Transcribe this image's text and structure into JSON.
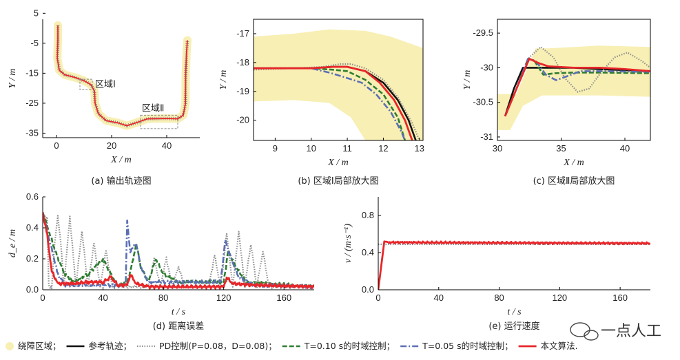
{
  "colors": {
    "zone": "#f8efb4",
    "reference": "#111111",
    "pd": "#8d8d8d",
    "t010": "#2f7d32",
    "t005": "#5b6fb3",
    "ours": "#e8262a"
  },
  "legend": [
    {
      "key": "zone",
      "label": "绕障区域；",
      "style": "dot"
    },
    {
      "key": "reference",
      "label": "参考轨迹；",
      "style": "solid"
    },
    {
      "key": "pd",
      "label": "PD控制(P=0.08，D=0.08)；",
      "style": "dotted"
    },
    {
      "key": "t010",
      "label": "T=0.10 s的时域控制；",
      "style": "dashed"
    },
    {
      "key": "t005",
      "label": "T=0.05 s的时域控制；",
      "style": "dashdot"
    },
    {
      "key": "ours",
      "label": "本文算法.",
      "style": "solid"
    }
  ],
  "watermark": "一点人工",
  "chart_data": [
    {
      "id": "a",
      "type": "line",
      "caption": "(a) 输出轨迹图",
      "xlabel": "X / m",
      "ylabel": "Y / m",
      "xlim": [
        -5,
        52
      ],
      "ylim": [
        -36.5,
        3
      ],
      "xticks": [
        0,
        20,
        40
      ],
      "yticks": [
        -35,
        -25,
        -15,
        -5,
        5
      ],
      "annotations": [
        "区域Ⅰ",
        "区域Ⅱ"
      ],
      "region_boxes": [
        {
          "name": "区域Ⅰ",
          "x": [
            8.5,
            13
          ],
          "y": [
            -20.5,
            -17
          ]
        },
        {
          "name": "区域Ⅱ",
          "x": [
            30.5,
            44
          ],
          "y": [
            -33.5,
            -29
          ]
        }
      ],
      "path": [
        [
          0.5,
          1
        ],
        [
          0.5,
          -4
        ],
        [
          0.3,
          -10
        ],
        [
          1,
          -14
        ],
        [
          3,
          -15.5
        ],
        [
          7,
          -16.5
        ],
        [
          10,
          -17.5
        ],
        [
          12.5,
          -18.8
        ],
        [
          13.8,
          -21
        ],
        [
          14,
          -25
        ],
        [
          15.2,
          -28.5
        ],
        [
          18,
          -30.8
        ],
        [
          22,
          -31.5
        ],
        [
          25.5,
          -32.5
        ],
        [
          29,
          -31.5
        ],
        [
          33,
          -30.2
        ],
        [
          40,
          -30.1
        ],
        [
          44,
          -30.2
        ],
        [
          46,
          -29
        ],
        [
          46.8,
          -25
        ],
        [
          46.9,
          -15
        ],
        [
          47.2,
          -8
        ],
        [
          47.5,
          -4
        ]
      ]
    },
    {
      "id": "b",
      "type": "line",
      "caption": "(b) 区域Ⅰ局部放大图",
      "xlabel": "X / m",
      "ylabel": "Y / m",
      "xlim": [
        8.4,
        13.1
      ],
      "ylim": [
        -20.7,
        -16.5
      ],
      "xticks": [
        9,
        10,
        11,
        12,
        13
      ],
      "yticks": [
        -20,
        -19,
        -18,
        -17
      ],
      "series": [
        {
          "key": "reference",
          "points": [
            [
              8.4,
              -18.2
            ],
            [
              10,
              -18.2
            ],
            [
              10.6,
              -18.15
            ],
            [
              11,
              -18.15
            ],
            [
              11.5,
              -18.3
            ],
            [
              12,
              -18.7
            ],
            [
              12.4,
              -19.3
            ],
            [
              12.7,
              -20
            ],
            [
              12.9,
              -20.7
            ]
          ]
        },
        {
          "key": "pd",
          "points": [
            [
              8.4,
              -18.25
            ],
            [
              9.5,
              -18.2
            ],
            [
              10.3,
              -18.15
            ],
            [
              10.8,
              -18.05
            ],
            [
              11.1,
              -18.05
            ],
            [
              11.5,
              -18.2
            ],
            [
              12,
              -18.6
            ],
            [
              12.4,
              -19.2
            ],
            [
              12.8,
              -20.1
            ],
            [
              13,
              -20.7
            ]
          ]
        },
        {
          "key": "t010",
          "points": [
            [
              8.4,
              -18.2
            ],
            [
              10,
              -18.2
            ],
            [
              10.6,
              -18.25
            ],
            [
              11,
              -18.3
            ],
            [
              11.5,
              -18.6
            ],
            [
              12,
              -19.1
            ],
            [
              12.4,
              -19.9
            ],
            [
              12.6,
              -20.7
            ]
          ]
        },
        {
          "key": "t005",
          "points": [
            [
              8.4,
              -18.2
            ],
            [
              10,
              -18.2
            ],
            [
              10.5,
              -18.35
            ],
            [
              10.9,
              -18.5
            ],
            [
              11.4,
              -18.7
            ],
            [
              11.8,
              -19.1
            ],
            [
              12.2,
              -19.7
            ],
            [
              12.5,
              -20.4
            ],
            [
              12.6,
              -20.7
            ]
          ]
        },
        {
          "key": "ours",
          "points": [
            [
              8.4,
              -18.2
            ],
            [
              10,
              -18.2
            ],
            [
              10.6,
              -18.15
            ],
            [
              11,
              -18.15
            ],
            [
              11.5,
              -18.3
            ],
            [
              11.9,
              -18.7
            ],
            [
              12.3,
              -19.3
            ],
            [
              12.6,
              -20
            ],
            [
              12.8,
              -20.7
            ]
          ]
        }
      ]
    },
    {
      "id": "c",
      "type": "line",
      "caption": "(c) 区域Ⅱ局部放大图",
      "xlabel": "X / m",
      "ylabel": "Y / m",
      "xlim": [
        30,
        42
      ],
      "ylim": [
        -31.05,
        -29.3
      ],
      "xticks": [
        30,
        35,
        40
      ],
      "yticks": [
        -31,
        -30.5,
        -30,
        -29.5
      ],
      "series": [
        {
          "key": "reference",
          "points": [
            [
              30.6,
              -30.7
            ],
            [
              31.3,
              -30.3
            ],
            [
              32,
              -30
            ],
            [
              36,
              -30
            ],
            [
              38,
              -30.02
            ],
            [
              42,
              -30.05
            ]
          ]
        },
        {
          "key": "pd",
          "points": [
            [
              30.6,
              -30.7
            ],
            [
              31.5,
              -30.3
            ],
            [
              32.5,
              -29.85
            ],
            [
              33.4,
              -29.7
            ],
            [
              34.4,
              -29.85
            ],
            [
              35.3,
              -30.15
            ],
            [
              36.3,
              -30.35
            ],
            [
              37.2,
              -30.3
            ],
            [
              38.2,
              -30.05
            ],
            [
              39.2,
              -29.85
            ],
            [
              40.2,
              -29.78
            ],
            [
              41.3,
              -29.9
            ],
            [
              42,
              -30.0
            ]
          ]
        },
        {
          "key": "t010",
          "points": [
            [
              30.6,
              -30.7
            ],
            [
              31.5,
              -30.3
            ],
            [
              32.4,
              -29.87
            ],
            [
              32.9,
              -29.9
            ],
            [
              33.6,
              -30.1
            ],
            [
              34.5,
              -30.08
            ],
            [
              36,
              -30.07
            ],
            [
              38,
              -30.07
            ],
            [
              42,
              -30.08
            ]
          ]
        },
        {
          "key": "t005",
          "points": [
            [
              30.6,
              -30.7
            ],
            [
              31.5,
              -30.3
            ],
            [
              32.4,
              -29.87
            ],
            [
              33,
              -29.9
            ],
            [
              33.8,
              -30.1
            ],
            [
              34.6,
              -30.18
            ],
            [
              35.5,
              -30.12
            ],
            [
              36.5,
              -30.05
            ],
            [
              38,
              -30.05
            ],
            [
              42,
              -30.06
            ]
          ]
        },
        {
          "key": "ours",
          "points": [
            [
              30.6,
              -30.7
            ],
            [
              31.5,
              -30.3
            ],
            [
              32.5,
              -29.87
            ],
            [
              33.2,
              -29.93
            ],
            [
              34,
              -29.98
            ],
            [
              36,
              -30.0
            ],
            [
              38,
              -30.0
            ],
            [
              40,
              -30.02
            ],
            [
              42,
              -30.05
            ]
          ]
        }
      ]
    },
    {
      "id": "d",
      "type": "line",
      "caption": "(d) 距离误差",
      "xlabel": "t / s",
      "ylabel": "d_e / m",
      "xlim": [
        0,
        180
      ],
      "ylim": [
        0,
        0.6
      ],
      "xticks": [
        0,
        40,
        80,
        120,
        160
      ],
      "yticks": [
        0.0,
        0.2,
        0.4,
        0.6
      ],
      "series": [
        {
          "key": "pd",
          "points": [
            [
              0,
              0.5
            ],
            [
              3,
              0.45
            ],
            [
              4,
              0.02
            ],
            [
              6,
              0.02
            ],
            [
              8,
              0.3
            ],
            [
              10,
              0.48
            ],
            [
              12,
              0.3
            ],
            [
              14,
              0.02
            ],
            [
              18,
              0.47
            ],
            [
              22,
              0.02
            ],
            [
              26,
              0.38
            ],
            [
              30,
              0.02
            ],
            [
              34,
              0.3
            ],
            [
              38,
              0.02
            ],
            [
              42,
              0.25
            ],
            [
              46,
              0.02
            ],
            [
              60,
              0.02
            ],
            [
              70,
              0.02
            ],
            [
              74,
              0.2
            ],
            [
              78,
              0.02
            ],
            [
              82,
              0.2
            ],
            [
              86,
              0.02
            ],
            [
              90,
              0.15
            ],
            [
              94,
              0.02
            ],
            [
              110,
              0.02
            ],
            [
              114,
              0.22
            ],
            [
              118,
              0.02
            ],
            [
              122,
              0.36
            ],
            [
              126,
              0.02
            ],
            [
              130,
              0.38
            ],
            [
              134,
              0.02
            ],
            [
              138,
              0.3
            ],
            [
              142,
              0.02
            ],
            [
              146,
              0.25
            ],
            [
              150,
              0.02
            ],
            [
              180,
              0.02
            ]
          ]
        },
        {
          "key": "t010",
          "points": [
            [
              0,
              0.5
            ],
            [
              5,
              0.35
            ],
            [
              10,
              0.2
            ],
            [
              15,
              0.1
            ],
            [
              20,
              0.05
            ],
            [
              30,
              0.1
            ],
            [
              40,
              0.2
            ],
            [
              45,
              0.1
            ],
            [
              50,
              0.03
            ],
            [
              56,
              0.05
            ],
            [
              59,
              0.15
            ],
            [
              62,
              0.3
            ],
            [
              65,
              0.15
            ],
            [
              70,
              0.05
            ],
            [
              75,
              0.2
            ],
            [
              80,
              0.1
            ],
            [
              90,
              0.05
            ],
            [
              120,
              0.05
            ],
            [
              123,
              0.25
            ],
            [
              128,
              0.15
            ],
            [
              135,
              0.05
            ],
            [
              180,
              0.02
            ]
          ]
        },
        {
          "key": "t005",
          "points": [
            [
              0,
              0.5
            ],
            [
              5,
              0.3
            ],
            [
              10,
              0.1
            ],
            [
              15,
              0.03
            ],
            [
              40,
              0.03
            ],
            [
              55,
              0.03
            ],
            [
              56,
              0.44
            ],
            [
              58,
              0.25
            ],
            [
              62,
              0.3
            ],
            [
              65,
              0.15
            ],
            [
              70,
              0.05
            ],
            [
              118,
              0.05
            ],
            [
              121,
              0.32
            ],
            [
              125,
              0.2
            ],
            [
              130,
              0.08
            ],
            [
              140,
              0.03
            ],
            [
              180,
              0.02
            ]
          ]
        },
        {
          "key": "ours",
          "points": [
            [
              0,
              0.5
            ],
            [
              3,
              0.35
            ],
            [
              6,
              0.12
            ],
            [
              10,
              0.04
            ],
            [
              20,
              0.04
            ],
            [
              30,
              0.05
            ],
            [
              40,
              0.05
            ],
            [
              45,
              0.08
            ],
            [
              50,
              0.03
            ],
            [
              56,
              0.03
            ],
            [
              58,
              0.1
            ],
            [
              62,
              0.04
            ],
            [
              70,
              0.02
            ],
            [
              120,
              0.02
            ],
            [
              122,
              0.08
            ],
            [
              126,
              0.04
            ],
            [
              140,
              0.03
            ],
            [
              180,
              0.02
            ]
          ]
        }
      ]
    },
    {
      "id": "e",
      "type": "line",
      "caption": "(e) 运行速度",
      "xlabel": "t / s",
      "ylabel": "v / (m·s⁻¹)",
      "xlim": [
        0,
        180
      ],
      "ylim": [
        0,
        1.0
      ],
      "xticks": [
        0,
        40,
        80,
        120,
        160
      ],
      "yticks": [
        0.0,
        0.4,
        0.8
      ],
      "series": [
        {
          "key": "pd",
          "points": [
            [
              0,
              0.49
            ],
            [
              180,
              0.49
            ]
          ]
        },
        {
          "key": "ours",
          "points": [
            [
              0,
              0
            ],
            [
              4,
              0.52
            ],
            [
              8,
              0.51
            ],
            [
              180,
              0.5
            ]
          ]
        }
      ]
    }
  ]
}
